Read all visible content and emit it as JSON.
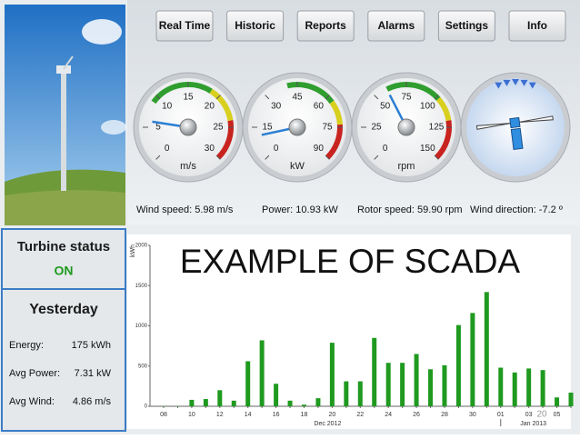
{
  "nav": [
    "Real Time",
    "Historic",
    "Reports",
    "Alarms",
    "Settings",
    "Info"
  ],
  "gauges": [
    {
      "ticks": [
        0,
        5,
        10,
        15,
        20,
        25,
        30
      ],
      "unit": "m/s",
      "value": 5.98,
      "caption": "Wind speed: 5.98 m/s"
    },
    {
      "ticks": [
        0,
        15,
        30,
        45,
        60,
        75,
        90
      ],
      "unit": "kW",
      "value": 10.93,
      "caption": "Power:  10.93 kW"
    },
    {
      "ticks": [
        0,
        25,
        50,
        75,
        100,
        125,
        150
      ],
      "unit": "rpm",
      "value": 59.9,
      "caption": "Rotor speed: 59.90 rpm"
    }
  ],
  "wind_direction": {
    "value": -7.2,
    "caption": "Wind direction: -7.2 º"
  },
  "status": {
    "title": "Turbine status",
    "value": "ON"
  },
  "yesterday": {
    "title": "Yesterday",
    "rows": [
      [
        "Energy:",
        "175 kWh"
      ],
      [
        "Avg Power:",
        "7.31 kW"
      ],
      [
        "Avg Wind:",
        "4.86 m/s"
      ]
    ]
  },
  "overlay_title": "EXAMPLE OF SCADA",
  "page_number": "20",
  "chart_data": {
    "type": "bar",
    "y_label": "kWh",
    "categories": [
      "08",
      null,
      "10",
      null,
      "12",
      null,
      "14",
      null,
      "16",
      null,
      "18",
      null,
      "20",
      null,
      "22",
      null,
      "24",
      null,
      "26",
      null,
      "28",
      null,
      "30",
      null,
      "01",
      null,
      "03",
      null,
      "05",
      null
    ],
    "values": [
      3,
      3,
      80,
      90,
      200,
      70,
      560,
      820,
      280,
      70,
      20,
      100,
      790,
      310,
      310,
      850,
      540,
      540,
      650,
      460,
      510,
      1010,
      1160,
      1420,
      480,
      420,
      470,
      450,
      110,
      170
    ],
    "x_groups": [
      "Dec 2012",
      "Jan 2013"
    ],
    "color": "#1f9a1f",
    "ylim": [
      0,
      2000
    ],
    "yticks": [
      0,
      500,
      1000,
      1500,
      2000
    ]
  }
}
